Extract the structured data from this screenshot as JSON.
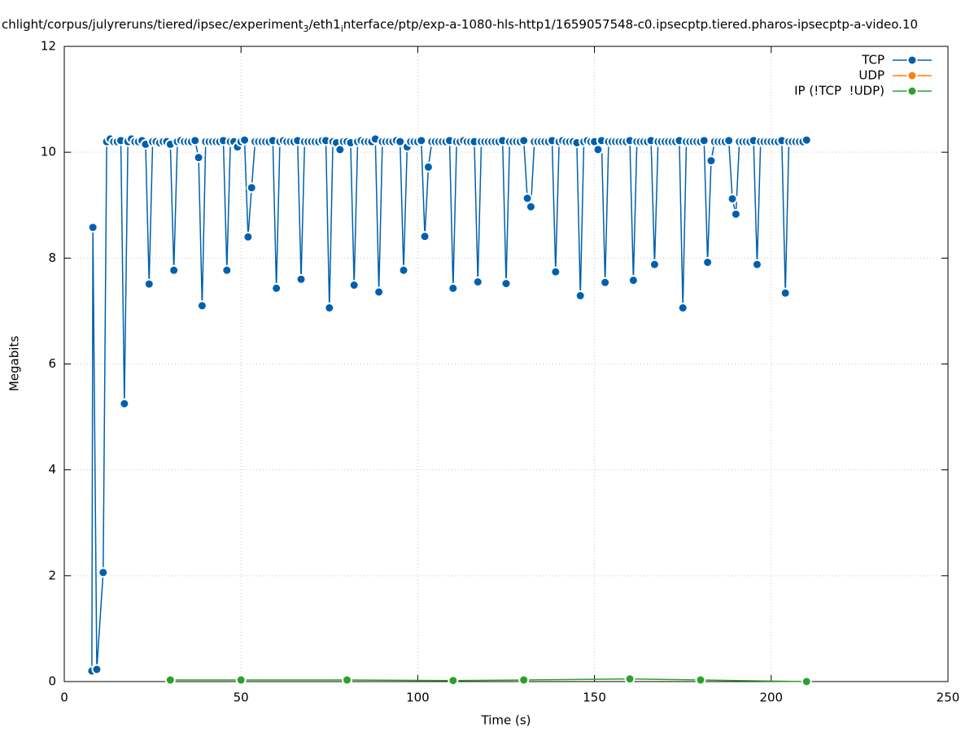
{
  "chart_data": {
    "type": "line",
    "title": [
      "chlight/corpus/julyreruns/tiered/ipsec/experiment",
      "3",
      "/eth1",
      "i",
      "nterface/ptp/exp-a-1080-hls-http1/1659057548-c0.ipsecptp.tiered.pharos-ipsecptp-a-video.10"
    ],
    "xlabel": "Time (s)",
    "ylabel": "Megabits",
    "xlim": [
      0,
      250
    ],
    "xticks": [
      0,
      50,
      100,
      150,
      200,
      250
    ],
    "ylim": [
      0,
      12
    ],
    "yticks": [
      0,
      2,
      4,
      6,
      8,
      10,
      12
    ],
    "grid": true,
    "legend": "top-right",
    "series": [
      {
        "name": "TCP",
        "color": "#0060ad",
        "x": [
          7.8,
          8.1,
          9.2,
          11,
          12,
          13,
          14,
          15,
          16,
          17,
          18,
          19,
          20,
          21,
          22,
          23,
          24,
          25,
          26,
          27,
          28,
          29,
          30,
          31,
          32,
          33,
          34,
          35,
          36,
          37,
          38,
          39,
          40,
          41,
          42,
          43,
          44,
          45,
          46,
          47,
          48,
          49,
          50,
          51,
          52,
          53,
          54,
          55,
          56,
          57,
          58,
          59,
          60,
          61,
          62,
          63,
          64,
          65,
          66,
          67,
          68,
          69,
          70,
          71,
          72,
          73,
          74,
          75,
          76,
          77,
          78,
          79,
          80,
          81,
          82,
          83,
          84,
          85,
          86,
          87,
          88,
          89,
          90,
          91,
          92,
          93,
          94,
          95,
          96,
          97,
          98,
          99,
          100,
          101,
          102,
          103,
          104,
          105,
          106,
          107,
          108,
          109,
          110,
          111,
          112,
          113,
          114,
          115,
          116,
          117,
          118,
          119,
          120,
          121,
          122,
          123,
          124,
          125,
          126,
          127,
          128,
          129,
          130,
          131,
          132,
          133,
          134,
          135,
          136,
          137,
          138,
          139,
          140,
          141,
          142,
          143,
          144,
          145,
          146,
          147,
          148,
          149,
          150,
          151,
          152,
          153,
          154,
          155,
          156,
          157,
          158,
          159,
          160,
          161,
          162,
          163,
          164,
          165,
          166,
          167,
          168,
          169,
          170,
          171,
          172,
          173,
          174,
          175,
          176,
          177,
          178,
          179,
          180,
          181,
          182,
          183,
          184,
          185,
          186,
          187,
          188,
          189,
          190,
          191,
          192,
          193,
          194,
          195,
          196,
          197,
          198,
          199,
          200,
          201,
          202,
          203,
          204,
          205,
          206,
          207,
          208,
          209,
          210
        ],
        "values": [
          0.2,
          8.58,
          0.23,
          2.06,
          10.2,
          10.25,
          10.2,
          10.2,
          10.22,
          5.25,
          10.2,
          10.25,
          10.2,
          10.2,
          10.22,
          10.15,
          7.51,
          10.2,
          10.2,
          10.18,
          10.2,
          10.2,
          10.15,
          7.77,
          10.2,
          10.22,
          10.2,
          10.2,
          10.2,
          10.22,
          9.9,
          7.1,
          10.2,
          10.2,
          10.2,
          10.2,
          10.2,
          10.22,
          7.77,
          10.2,
          10.2,
          10.1,
          10.2,
          10.23,
          8.4,
          9.33,
          10.2,
          10.2,
          10.2,
          10.2,
          10.2,
          10.22,
          7.43,
          10.2,
          10.22,
          10.2,
          10.2,
          10.2,
          10.22,
          7.6,
          10.2,
          10.2,
          10.2,
          10.2,
          10.2,
          10.22,
          10.22,
          7.06,
          10.2,
          10.18,
          10.05,
          10.2,
          10.2,
          10.18,
          7.49,
          10.2,
          10.22,
          10.2,
          10.2,
          10.2,
          10.25,
          7.36,
          10.2,
          10.2,
          10.2,
          10.2,
          10.22,
          10.2,
          7.77,
          10.1,
          10.2,
          10.2,
          10.2,
          10.22,
          8.41,
          9.72,
          10.2,
          10.2,
          10.2,
          10.2,
          10.2,
          10.22,
          7.43,
          10.2,
          10.2,
          10.22,
          10.2,
          10.2,
          10.2,
          7.55,
          10.2,
          10.2,
          10.2,
          10.2,
          10.2,
          10.2,
          10.22,
          7.52,
          10.2,
          10.2,
          10.2,
          10.2,
          10.22,
          9.13,
          8.97,
          10.2,
          10.2,
          10.2,
          10.2,
          10.2,
          10.22,
          7.74,
          10.2,
          10.22,
          10.2,
          10.2,
          10.2,
          10.18,
          7.29,
          10.2,
          10.22,
          10.2,
          10.2,
          10.05,
          10.22,
          7.54,
          10.2,
          10.2,
          10.2,
          10.2,
          10.2,
          10.2,
          10.22,
          7.58,
          10.2,
          10.2,
          10.2,
          10.2,
          10.22,
          7.88,
          10.2,
          10.2,
          10.2,
          10.2,
          10.2,
          10.2,
          10.22,
          7.06,
          10.2,
          10.2,
          10.2,
          10.2,
          10.2,
          10.22,
          7.92,
          9.84,
          10.2,
          10.2,
          10.2,
          10.2,
          10.22,
          9.12,
          8.83,
          10.2,
          10.2,
          10.2,
          10.2,
          10.22,
          7.88,
          10.2,
          10.2,
          10.2,
          10.2,
          10.2,
          10.2,
          10.22,
          7.34,
          10.2,
          10.2,
          10.2,
          10.2,
          10.2,
          10.23
        ]
      },
      {
        "name": "UDP",
        "color": "#ff7f0e",
        "x": [],
        "values": []
      },
      {
        "name": "IP (!TCP  !UDP)",
        "color": "#2ca02c",
        "x": [
          30,
          50,
          80,
          110,
          130,
          160,
          180,
          210
        ],
        "values": [
          0.03,
          0.03,
          0.03,
          0.02,
          0.03,
          0.05,
          0.03,
          0
        ]
      }
    ]
  }
}
